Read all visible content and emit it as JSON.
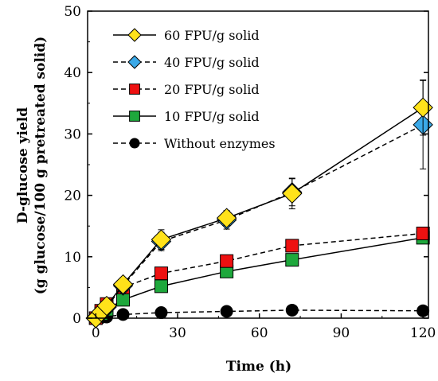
{
  "chart_data": {
    "type": "line",
    "title": "",
    "xlabel": "Time (h)",
    "ylabel_line1": "D-glucose yield",
    "ylabel_line2": "(g glucose/100 g pretreated solid)",
    "xlim": [
      -3,
      122
    ],
    "ylim": [
      0,
      50
    ],
    "xticks": [
      0,
      30,
      60,
      90,
      120
    ],
    "yticks": [
      0,
      10,
      20,
      30,
      40,
      50
    ],
    "grid": false,
    "legend_position": "top-left",
    "series": [
      {
        "name": "60 FPU/g solid",
        "marker": "diamond",
        "line": "solid",
        "color": "#FFE21A",
        "x": [
          0,
          2,
          4,
          10,
          24,
          48,
          72,
          120
        ],
        "y": [
          0,
          1.0,
          2.0,
          5.5,
          12.8,
          16.3,
          20.3,
          34.3
        ],
        "err": [
          0,
          0,
          0,
          0.5,
          1.6,
          1.2,
          2.5,
          4.5
        ]
      },
      {
        "name": "40 FPU/g solid",
        "marker": "diamond",
        "line": "dashed",
        "color": "#3BA9E8",
        "x": [
          0,
          2,
          4,
          10,
          24,
          48,
          72,
          120
        ],
        "y": [
          0,
          0.9,
          1.8,
          5.3,
          12.5,
          16.0,
          20.5,
          31.5
        ],
        "err": [
          0,
          0,
          0,
          0.5,
          1.5,
          1.5,
          2.2,
          7.2
        ]
      },
      {
        "name": "20 FPU/g solid",
        "marker": "square",
        "line": "dashed",
        "color": "#EE1111",
        "x": [
          0,
          2,
          4,
          10,
          24,
          48,
          72,
          120
        ],
        "y": [
          0,
          1.2,
          2.3,
          5.0,
          7.3,
          9.3,
          11.8,
          13.8
        ],
        "err": [
          0,
          0,
          0,
          0,
          0,
          0,
          0,
          0
        ]
      },
      {
        "name": "10 FPU/g solid",
        "marker": "square",
        "line": "solid",
        "color": "#1EA83C",
        "x": [
          0,
          2,
          4,
          10,
          24,
          48,
          72,
          120
        ],
        "y": [
          0,
          0.7,
          1.4,
          3.0,
          5.2,
          7.6,
          9.5,
          13.1
        ],
        "err": [
          0,
          0,
          0,
          0,
          0,
          0,
          0,
          0
        ]
      },
      {
        "name": "Without enzymes",
        "marker": "circle",
        "line": "dashed",
        "color": "#000000",
        "x": [
          0,
          2,
          4,
          10,
          24,
          48,
          72,
          120
        ],
        "y": [
          0,
          0.1,
          0.2,
          0.6,
          0.9,
          1.1,
          1.3,
          1.2
        ],
        "err": [
          0,
          0,
          0,
          0,
          0,
          0,
          0,
          0
        ]
      }
    ]
  }
}
